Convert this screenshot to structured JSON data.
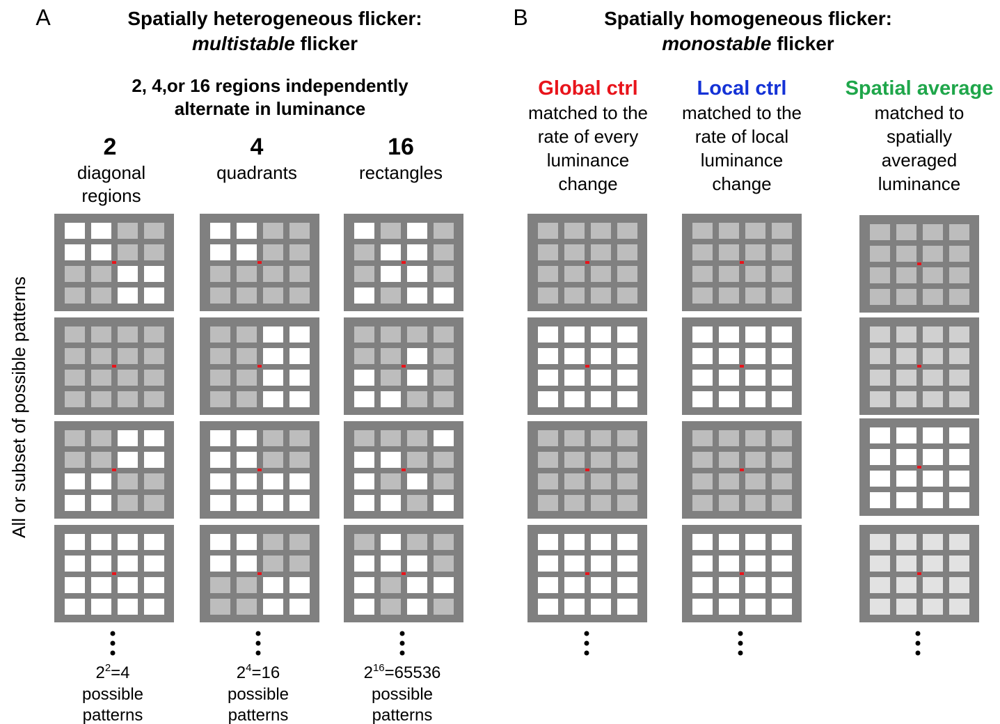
{
  "panel_a": {
    "label": "A",
    "title": {
      "line1": "Spatially heterogeneous flicker:",
      "italic": "multistable",
      "rest": " flicker"
    },
    "subtitle": [
      "2, 4,or 16 regions independently",
      "alternate in luminance"
    ],
    "y_label": "All or subset of possible patterns",
    "columns": [
      {
        "number": "2",
        "desc": [
          "diagonal",
          "regions"
        ],
        "count": {
          "base": "2",
          "exp": "2",
          "result": "=4"
        },
        "note": [
          "possible",
          "patterns"
        ]
      },
      {
        "number": "4",
        "desc": [
          "quadrants"
        ],
        "count": {
          "base": "2",
          "exp": "4",
          "result": "=16"
        },
        "note": [
          "possible",
          "patterns"
        ]
      },
      {
        "number": "16",
        "desc": [
          "rectangles"
        ],
        "count": {
          "base": "2",
          "exp": "16",
          "result": "=65536"
        },
        "note": [
          "possible",
          "patterns"
        ]
      }
    ]
  },
  "panel_b": {
    "label": "B",
    "title": {
      "line1": "Spatially homogeneous flicker:",
      "italic": "monostable",
      "rest": " flicker"
    },
    "columns": [
      {
        "name": "Global ctrl",
        "color": "#e8141b",
        "desc": [
          "matched to the",
          "rate of every",
          "luminance",
          "change"
        ]
      },
      {
        "name": "Local ctrl",
        "color": "#1432d6",
        "desc": [
          "matched to the",
          "rate of local",
          "luminance",
          "change"
        ]
      },
      {
        "name": "Spatial average",
        "color": "#1fa64a",
        "desc": [
          "matched to",
          "spatially",
          "averaged",
          "luminance"
        ]
      }
    ]
  }
}
